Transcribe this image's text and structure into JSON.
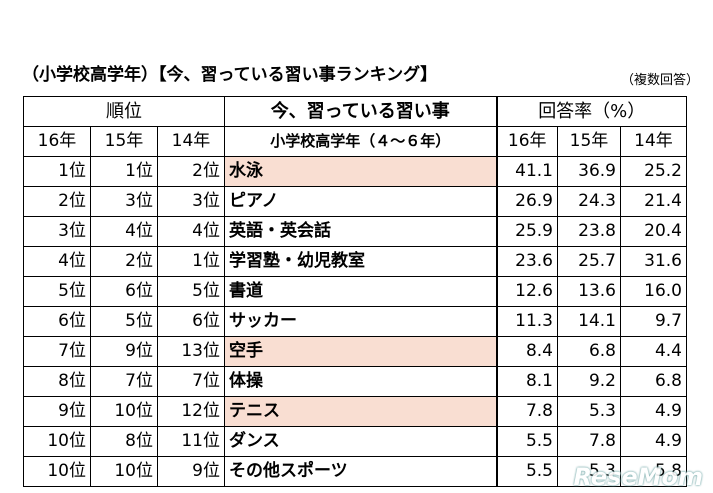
{
  "title": "（小学校高学年）【今、習っている習い事ランキング】",
  "note": "（複数回答）",
  "header": {
    "rank_group": "順位",
    "item_group": "今、習っている習い事",
    "rate_group": "回答率（%）",
    "item_sub": "小学校高学年（４～６年）",
    "cols": [
      "16年",
      "15年",
      "14年",
      "16年",
      "15年",
      "14年"
    ]
  },
  "rows": [
    {
      "r16": "1位",
      "r15": "1位",
      "r14": "2位",
      "item": "水泳",
      "highlight": true,
      "p16": "41.1",
      "p15": "36.9",
      "p14": "25.2"
    },
    {
      "r16": "2位",
      "r15": "3位",
      "r14": "3位",
      "item": "ピアノ",
      "highlight": false,
      "p16": "26.9",
      "p15": "24.3",
      "p14": "21.4"
    },
    {
      "r16": "3位",
      "r15": "4位",
      "r14": "4位",
      "item": "英語・英会話",
      "highlight": false,
      "p16": "25.9",
      "p15": "23.8",
      "p14": "20.4"
    },
    {
      "r16": "4位",
      "r15": "2位",
      "r14": "1位",
      "item": "学習塾・幼児教室",
      "highlight": false,
      "p16": "23.6",
      "p15": "25.7",
      "p14": "31.6"
    },
    {
      "r16": "5位",
      "r15": "6位",
      "r14": "5位",
      "item": "書道",
      "highlight": false,
      "p16": "12.6",
      "p15": "13.6",
      "p14": "16.0"
    },
    {
      "r16": "6位",
      "r15": "5位",
      "r14": "6位",
      "item": "サッカー",
      "highlight": false,
      "p16": "11.3",
      "p15": "14.1",
      "p14": "9.7"
    },
    {
      "r16": "7位",
      "r15": "9位",
      "r14": "13位",
      "item": "空手",
      "highlight": true,
      "p16": "8.4",
      "p15": "6.8",
      "p14": "4.4"
    },
    {
      "r16": "8位",
      "r15": "7位",
      "r14": "7位",
      "item": "体操",
      "highlight": false,
      "p16": "8.1",
      "p15": "9.2",
      "p14": "6.8"
    },
    {
      "r16": "9位",
      "r15": "10位",
      "r14": "12位",
      "item": "テニス",
      "highlight": true,
      "p16": "7.8",
      "p15": "5.3",
      "p14": "4.9"
    },
    {
      "r16": "10位",
      "r15": "8位",
      "r14": "11位",
      "item": "ダンス",
      "highlight": false,
      "p16": "5.5",
      "p15": "7.8",
      "p14": "4.9"
    },
    {
      "r16": "10位",
      "r15": "10位",
      "r14": "9位",
      "item": "その他スポーツ",
      "highlight": false,
      "p16": "5.5",
      "p15": "5.3",
      "p14": "5.8"
    }
  ],
  "colors": {
    "highlight": "#f9ded2"
  },
  "watermark": "ReseMom"
}
